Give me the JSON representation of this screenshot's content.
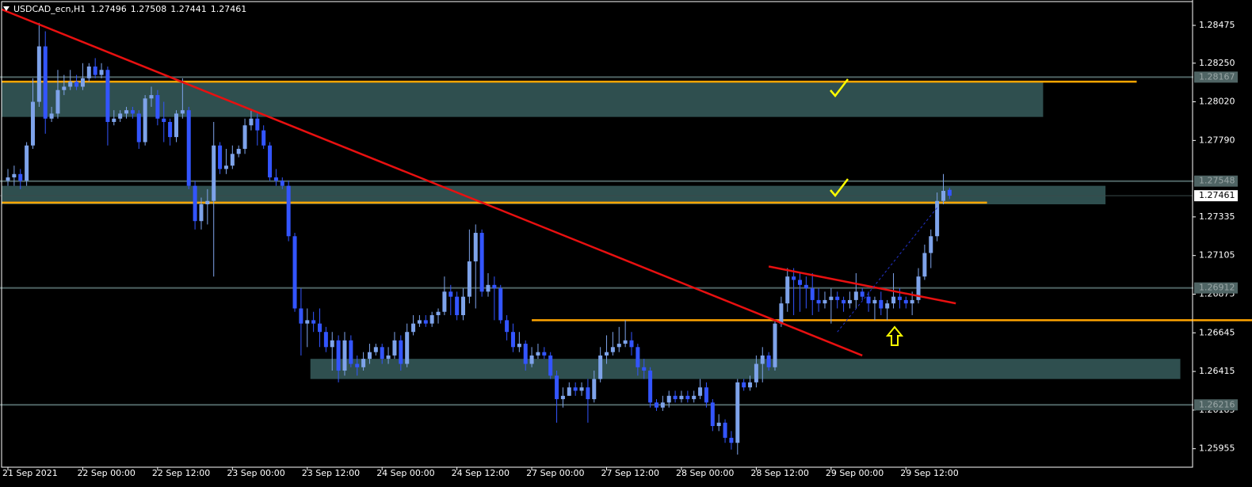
{
  "chart_data": {
    "type": "candlestick",
    "symbol": "USDCAD_ecn,H1",
    "bull_color": "#7ea3ea",
    "bear_color": "#3355ff",
    "ylim": [
      1.25845,
      1.28626
    ],
    "xlim": [
      -1,
      200
    ],
    "yticks": [
      1.28475,
      {
        "value": 1.2825,
        "label": "1.28250"
      },
      {
        "value": 1.2802,
        "label": "1.28020"
      },
      {
        "value": 1.2779,
        "label": "1.27790"
      },
      1.27335,
      1.27105,
      1.26875,
      1.26645,
      1.26415,
      1.26185,
      1.25955
    ],
    "xticks": [
      {
        "value": 0,
        "label": "21 Sep 2021"
      },
      {
        "value": 12,
        "label": "22 Sep 00:00"
      },
      {
        "value": 24,
        "label": "22 Sep 12:00"
      },
      {
        "value": 36,
        "label": "23 Sep 00:00"
      },
      {
        "value": 48,
        "label": "23 Sep 12:00"
      },
      {
        "value": 60,
        "label": "24 Sep 00:00"
      },
      {
        "value": 72,
        "label": "24 Sep 12:00"
      },
      {
        "value": 84,
        "label": "27 Sep 00:00"
      },
      {
        "value": 96,
        "label": "27 Sep 12:00"
      },
      {
        "value": 108,
        "label": "28 Sep 00:00"
      },
      {
        "value": 120,
        "label": "28 Sep 12:00"
      },
      {
        "value": 132,
        "label": "29 Sep 00:00"
      },
      {
        "value": 144,
        "label": "29 Sep 12:00"
      }
    ],
    "levels": [
      1.28167,
      1.27548,
      1.26912,
      1.26216
    ],
    "level_color": "#4f6464",
    "zone_color": "#2f4f4f",
    "zones": [
      {
        "from": -1,
        "to": 166,
        "high": 1.2814,
        "low": 1.2793
      },
      {
        "from": -1,
        "to": 176,
        "high": 1.2752,
        "low": 1.2741
      },
      {
        "from": 48.5,
        "to": 188,
        "high": 1.2649,
        "low": 1.2637
      }
    ],
    "orange_color": "#ffa500",
    "orange_lines": [
      {
        "from": -1,
        "to": 181,
        "price": 1.2814
      },
      {
        "from": -1,
        "to": 157,
        "price": 1.2742
      },
      {
        "from": 84,
        "to": 200,
        "price": 1.2672
      }
    ],
    "red_color": "#e81010",
    "trend_lines": [
      {
        "x": [
          -1,
          137
        ],
        "y": [
          1.2857,
          1.2651
        ]
      },
      {
        "x": [
          122,
          152
        ],
        "y": [
          1.2704,
          1.2682
        ]
      }
    ],
    "dashed_color": "#2233cc",
    "dashed_line": {
      "x": [
        133,
        149
      ],
      "y": [
        1.2665,
        1.2739
      ]
    },
    "candles": [
      [
        1.2755,
        1.2762,
        1.2752,
        1.2757
      ],
      [
        1.2757,
        1.2764,
        1.2752,
        1.2759
      ],
      [
        1.2759,
        1.2762,
        1.275,
        1.2755
      ],
      [
        1.2755,
        1.2778,
        1.2752,
        1.2776
      ],
      [
        1.2776,
        1.2816,
        1.2774,
        1.2802
      ],
      [
        1.2802,
        1.2849,
        1.2799,
        1.2835
      ],
      [
        1.2835,
        1.2844,
        1.2783,
        1.2792
      ],
      [
        1.2792,
        1.2799,
        1.279,
        1.2795
      ],
      [
        1.2795,
        1.2821,
        1.2792,
        1.2809
      ],
      [
        1.2809,
        1.2818,
        1.2806,
        1.2811
      ],
      [
        1.2811,
        1.2821,
        1.2809,
        1.2814
      ],
      [
        1.2814,
        1.2818,
        1.2809,
        1.2811
      ],
      [
        1.2811,
        1.2825,
        1.2809,
        1.2816
      ],
      [
        1.2816,
        1.2825,
        1.2814,
        1.2823
      ],
      [
        1.2823,
        1.2828,
        1.2816,
        1.2818
      ],
      [
        1.2818,
        1.2825,
        1.2816,
        1.2821
      ],
      [
        1.2821,
        1.2823,
        1.2776,
        1.279
      ],
      [
        1.279,
        1.2797,
        1.2788,
        1.2792
      ],
      [
        1.2792,
        1.2797,
        1.279,
        1.2795
      ],
      [
        1.2795,
        1.2799,
        1.2792,
        1.2797
      ],
      [
        1.2797,
        1.2799,
        1.2792,
        1.2795
      ],
      [
        1.2795,
        1.2797,
        1.2774,
        1.2778
      ],
      [
        1.2778,
        1.2806,
        1.2776,
        1.2804
      ],
      [
        1.2804,
        1.2811,
        1.2799,
        1.2806
      ],
      [
        1.2806,
        1.2809,
        1.2788,
        1.2792
      ],
      [
        1.2792,
        1.2802,
        1.2778,
        1.279
      ],
      [
        1.279,
        1.2792,
        1.2776,
        1.2781
      ],
      [
        1.2781,
        1.2797,
        1.2778,
        1.2795
      ],
      [
        1.2795,
        1.2816,
        1.2792,
        1.2797
      ],
      [
        1.2797,
        1.2799,
        1.275,
        1.2752
      ],
      [
        1.2752,
        1.2755,
        1.2726,
        1.2731
      ],
      [
        1.2731,
        1.2745,
        1.2726,
        1.2741
      ],
      [
        1.2741,
        1.275,
        1.2729,
        1.2743
      ],
      [
        1.2743,
        1.279,
        1.2698,
        1.2776
      ],
      [
        1.2776,
        1.2778,
        1.2759,
        1.2762
      ],
      [
        1.2762,
        1.2774,
        1.2759,
        1.2764
      ],
      [
        1.2764,
        1.2776,
        1.2762,
        1.2771
      ],
      [
        1.2771,
        1.2776,
        1.2769,
        1.2774
      ],
      [
        1.2774,
        1.2792,
        1.2771,
        1.2788
      ],
      [
        1.2788,
        1.2797,
        1.2785,
        1.2792
      ],
      [
        1.2792,
        1.2795,
        1.2776,
        1.2785
      ],
      [
        1.2785,
        1.2788,
        1.2774,
        1.2776
      ],
      [
        1.2776,
        1.2778,
        1.2755,
        1.2757
      ],
      [
        1.2757,
        1.2762,
        1.2752,
        1.2755
      ],
      [
        1.2755,
        1.2757,
        1.275,
        1.2752
      ],
      [
        1.2752,
        1.2755,
        1.2719,
        1.2722
      ],
      [
        1.2722,
        1.2724,
        1.2677,
        1.2679
      ],
      [
        1.2679,
        1.2691,
        1.2651,
        1.267
      ],
      [
        1.267,
        1.2679,
        1.2656,
        1.2672
      ],
      [
        1.2672,
        1.2677,
        1.2665,
        1.267
      ],
      [
        1.267,
        1.2679,
        1.2656,
        1.2665
      ],
      [
        1.2665,
        1.2668,
        1.2653,
        1.2656
      ],
      [
        1.2656,
        1.2665,
        1.2642,
        1.266
      ],
      [
        1.266,
        1.2663,
        1.2635,
        1.2642
      ],
      [
        1.2642,
        1.2665,
        1.2639,
        1.266
      ],
      [
        1.266,
        1.2663,
        1.2644,
        1.2646
      ],
      [
        1.2646,
        1.2651,
        1.2639,
        1.2644
      ],
      [
        1.2644,
        1.2653,
        1.2642,
        1.2649
      ],
      [
        1.2649,
        1.2658,
        1.2646,
        1.2653
      ],
      [
        1.2653,
        1.2658,
        1.2651,
        1.2656
      ],
      [
        1.2656,
        1.2658,
        1.2646,
        1.2649
      ],
      [
        1.2649,
        1.2656,
        1.2646,
        1.2651
      ],
      [
        1.2651,
        1.2665,
        1.2649,
        1.266
      ],
      [
        1.266,
        1.2663,
        1.2642,
        1.2646
      ],
      [
        1.2646,
        1.267,
        1.2644,
        1.2665
      ],
      [
        1.2665,
        1.2675,
        1.2663,
        1.267
      ],
      [
        1.267,
        1.2675,
        1.2668,
        1.2672
      ],
      [
        1.2672,
        1.2675,
        1.2668,
        1.267
      ],
      [
        1.267,
        1.2677,
        1.2668,
        1.2675
      ],
      [
        1.2675,
        1.2679,
        1.267,
        1.2677
      ],
      [
        1.2677,
        1.2698,
        1.2675,
        1.2689
      ],
      [
        1.2689,
        1.2693,
        1.2675,
        1.2686
      ],
      [
        1.2686,
        1.2689,
        1.2672,
        1.2675
      ],
      [
        1.2675,
        1.2691,
        1.2672,
        1.2686
      ],
      [
        1.2686,
        1.2726,
        1.2682,
        1.2707
      ],
      [
        1.2707,
        1.2729,
        1.2679,
        1.2724
      ],
      [
        1.2724,
        1.2726,
        1.2686,
        1.2689
      ],
      [
        1.2689,
        1.27,
        1.2686,
        1.2693
      ],
      [
        1.2693,
        1.2698,
        1.2672,
        1.2691
      ],
      [
        1.2691,
        1.2693,
        1.267,
        1.2672
      ],
      [
        1.2672,
        1.2675,
        1.266,
        1.2665
      ],
      [
        1.2665,
        1.267,
        1.2653,
        1.2656
      ],
      [
        1.2656,
        1.2665,
        1.2653,
        1.2658
      ],
      [
        1.2658,
        1.266,
        1.2642,
        1.2646
      ],
      [
        1.2646,
        1.2656,
        1.2644,
        1.2651
      ],
      [
        1.2651,
        1.2658,
        1.2649,
        1.2653
      ],
      [
        1.2653,
        1.2656,
        1.2649,
        1.2651
      ],
      [
        1.2651,
        1.2653,
        1.2637,
        1.2639
      ],
      [
        1.2639,
        1.2642,
        1.2611,
        1.2625
      ],
      [
        1.2625,
        1.2632,
        1.262,
        1.2627
      ],
      [
        1.2627,
        1.2635,
        1.2627,
        1.2632
      ],
      [
        1.2632,
        1.2635,
        1.2627,
        1.263
      ],
      [
        1.263,
        1.2635,
        1.2627,
        1.2632
      ],
      [
        1.2632,
        1.2637,
        1.2611,
        1.2625
      ],
      [
        1.2625,
        1.2642,
        1.2623,
        1.2637
      ],
      [
        1.2637,
        1.2656,
        1.2635,
        1.2651
      ],
      [
        1.2651,
        1.2663,
        1.2646,
        1.2653
      ],
      [
        1.2653,
        1.2665,
        1.2651,
        1.2656
      ],
      [
        1.2656,
        1.2668,
        1.2653,
        1.2658
      ],
      [
        1.2658,
        1.2672,
        1.2656,
        1.266
      ],
      [
        1.266,
        1.2665,
        1.2651,
        1.2656
      ],
      [
        1.2656,
        1.2658,
        1.2639,
        1.2644
      ],
      [
        1.2644,
        1.2649,
        1.2637,
        1.2642
      ],
      [
        1.2642,
        1.2644,
        1.262,
        1.2623
      ],
      [
        1.2623,
        1.2625,
        1.2618,
        1.262
      ],
      [
        1.262,
        1.2627,
        1.2618,
        1.2623
      ],
      [
        1.2623,
        1.263,
        1.262,
        1.2627
      ],
      [
        1.2627,
        1.263,
        1.2623,
        1.2625
      ],
      [
        1.2625,
        1.263,
        1.2623,
        1.2627
      ],
      [
        1.2627,
        1.263,
        1.2623,
        1.2625
      ],
      [
        1.2625,
        1.263,
        1.2623,
        1.2627
      ],
      [
        1.2627,
        1.2637,
        1.2625,
        1.2632
      ],
      [
        1.2632,
        1.2635,
        1.262,
        1.2623
      ],
      [
        1.2623,
        1.2625,
        1.2606,
        1.2609
      ],
      [
        1.2609,
        1.2616,
        1.2606,
        1.2611
      ],
      [
        1.2611,
        1.2613,
        1.2599,
        1.2602
      ],
      [
        1.2602,
        1.2606,
        1.2595,
        1.2599
      ],
      [
        1.2599,
        1.2637,
        1.2592,
        1.2635
      ],
      [
        1.2635,
        1.2637,
        1.263,
        1.2632
      ],
      [
        1.2632,
        1.2639,
        1.263,
        1.2635
      ],
      [
        1.2635,
        1.2651,
        1.2632,
        1.2646
      ],
      [
        1.2646,
        1.2656,
        1.2635,
        1.2651
      ],
      [
        1.2651,
        1.2653,
        1.2642,
        1.2644
      ],
      [
        1.2644,
        1.2672,
        1.2642,
        1.267
      ],
      [
        1.267,
        1.2686,
        1.2668,
        1.2682
      ],
      [
        1.2682,
        1.2703,
        1.2677,
        1.2698
      ],
      [
        1.2698,
        1.2703,
        1.2675,
        1.2696
      ],
      [
        1.2696,
        1.27,
        1.2677,
        1.2693
      ],
      [
        1.2693,
        1.2698,
        1.2679,
        1.2691
      ],
      [
        1.2691,
        1.27,
        1.2675,
        1.2684
      ],
      [
        1.2684,
        1.2691,
        1.2677,
        1.2682
      ],
      [
        1.2682,
        1.2689,
        1.2679,
        1.2684
      ],
      [
        1.2684,
        1.2691,
        1.267,
        1.2686
      ],
      [
        1.2686,
        1.2689,
        1.2679,
        1.2684
      ],
      [
        1.2684,
        1.2686,
        1.2677,
        1.2682
      ],
      [
        1.2682,
        1.2689,
        1.2679,
        1.2684
      ],
      [
        1.2684,
        1.27,
        1.2679,
        1.2689
      ],
      [
        1.2689,
        1.2691,
        1.2684,
        1.2686
      ],
      [
        1.2686,
        1.2689,
        1.2677,
        1.2682
      ],
      [
        1.2682,
        1.2686,
        1.2672,
        1.2684
      ],
      [
        1.2684,
        1.2689,
        1.2675,
        1.2679
      ],
      [
        1.2679,
        1.2684,
        1.2672,
        1.2682
      ],
      [
        1.2682,
        1.27,
        1.2679,
        1.2686
      ],
      [
        1.2686,
        1.2691,
        1.2679,
        1.2684
      ],
      [
        1.2684,
        1.2686,
        1.2679,
        1.2682
      ],
      [
        1.2682,
        1.2689,
        1.2675,
        1.2684
      ],
      [
        1.2684,
        1.2703,
        1.2682,
        1.2698
      ],
      [
        1.2698,
        1.2717,
        1.2696,
        1.2712
      ],
      [
        1.2712,
        1.2726,
        1.2703,
        1.2722
      ],
      [
        1.2722,
        1.2748,
        1.2719,
        1.2743
      ],
      [
        1.2743,
        1.2759,
        1.2741,
        1.2749
      ],
      [
        1.27496,
        1.27508,
        1.27441,
        1.27461
      ]
    ]
  }
}
